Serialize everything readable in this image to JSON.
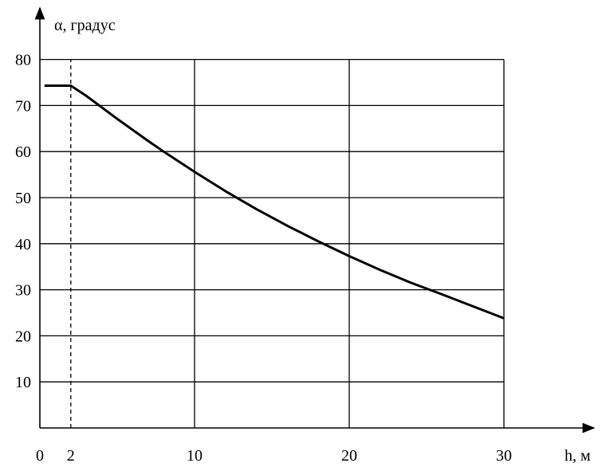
{
  "chart_data": {
    "type": "line",
    "title": "",
    "xlabel": "h, м",
    "ylabel": "α, градус",
    "xlim": [
      0,
      30
    ],
    "ylim": [
      0,
      80
    ],
    "x_ticks": [
      {
        "value": 0,
        "label": "0"
      },
      {
        "value": 2,
        "label": "2"
      },
      {
        "value": 10,
        "label": "10"
      },
      {
        "value": 20,
        "label": "20"
      },
      {
        "value": 30,
        "label": "30"
      }
    ],
    "y_ticks": [
      {
        "value": 10,
        "label": "10"
      },
      {
        "value": 20,
        "label": "20"
      },
      {
        "value": 30,
        "label": "30"
      },
      {
        "value": 40,
        "label": "40"
      },
      {
        "value": 50,
        "label": "50"
      },
      {
        "value": 60,
        "label": "60"
      },
      {
        "value": 70,
        "label": "70"
      },
      {
        "value": 80,
        "label": "80"
      }
    ],
    "grid": true,
    "vertical_grid_at": [
      10,
      20,
      30
    ],
    "horizontal_grid_at": [
      10,
      20,
      30,
      40,
      50,
      60,
      70,
      80
    ],
    "dashed_reference_x": 2,
    "series": [
      {
        "x": [
          0.3,
          2,
          3,
          4,
          5,
          6,
          7,
          8,
          9,
          10,
          12,
          14,
          16,
          18,
          20,
          22,
          24,
          26,
          28,
          30
        ],
        "y": [
          74.3,
          74.3,
          72.1,
          69.6,
          67.1,
          64.7,
          62.3,
          60.0,
          57.8,
          55.6,
          51.4,
          47.5,
          43.9,
          40.5,
          37.3,
          34.3,
          31.5,
          29.0,
          26.4,
          23.8
        ]
      }
    ],
    "colors": {
      "line": "#000000",
      "grid": "#000000",
      "background": "#ffffff"
    }
  }
}
